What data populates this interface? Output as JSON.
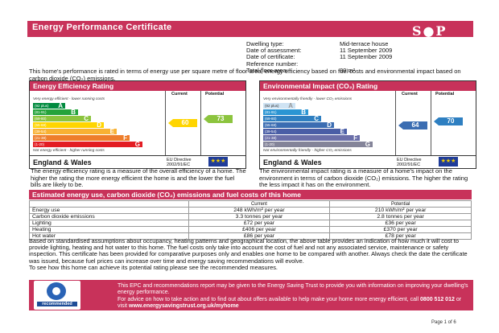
{
  "header": {
    "title": "Energy Performance Certificate",
    "logo_text": "S●P"
  },
  "details": [
    {
      "label": "Dwelling type:",
      "value": "Mid-terrace house"
    },
    {
      "label": "Date of assessment:",
      "value": "11 September 2009"
    },
    {
      "label": "Date of certificate:",
      "value": "11 September 2009"
    },
    {
      "label": "Reference number:",
      "value": ""
    },
    {
      "label": "Total floor area:",
      "value": "80 m²"
    }
  ],
  "intro": "This home's performance is rated in terms of energy use per square metre of floor area, energy efficiency based on fuel costs and environmental impact based on carbon dioxide (CO₂) emissions.",
  "colors": {
    "brand": "#c8325a",
    "band_A": "#008a3e",
    "band_B": "#25a33b",
    "band_C": "#8cc43e",
    "band_D": "#ffd500",
    "band_E": "#f8b133",
    "band_F": "#ee7d2b",
    "band_G": "#e31d23",
    "env_A": "#cfe3f3",
    "env_B": "#2b95d3",
    "env_C": "#2e7fc1",
    "env_D": "#3b6db2",
    "env_E": "#4a5ea6",
    "env_F": "#6b6fa9",
    "env_G": "#848499"
  },
  "efficiency": {
    "title": "Energy Efficiency Rating",
    "col_current": "Current",
    "col_potential": "Potential",
    "top_note": "Very energy efficient - lower running costs",
    "bottom_note": "Not energy efficient - higher running costs",
    "bands": [
      {
        "range": "(92 plus)",
        "letter": "A"
      },
      {
        "range": "(81-91)",
        "letter": "B"
      },
      {
        "range": "(69-80)",
        "letter": "C"
      },
      {
        "range": "(55-68)",
        "letter": "D"
      },
      {
        "range": "(39-54)",
        "letter": "E"
      },
      {
        "range": "(21-38)",
        "letter": "F"
      },
      {
        "range": "(1-20)",
        "letter": "G"
      }
    ],
    "current": "60",
    "potential": "73",
    "region": "England & Wales",
    "directive": "EU Directive 2002/91/EC",
    "caption": "The energy efficiency rating is a measure of the overall efficiency of a home. The higher the rating the more energy efficient the home is and the lower the fuel bills are likely to be."
  },
  "environmental": {
    "title": "Environmental Impact (CO₂) Rating",
    "col_current": "Current",
    "col_potential": "Potential",
    "top_note": "Very environmentally friendly - lower CO₂ emissions",
    "bottom_note": "Not environmentally friendly - higher CO₂ emissions",
    "bands": [
      {
        "range": "(92 plus)",
        "letter": "A"
      },
      {
        "range": "(81-91)",
        "letter": "B"
      },
      {
        "range": "(69-80)",
        "letter": "C"
      },
      {
        "range": "(55-68)",
        "letter": "D"
      },
      {
        "range": "(39-54)",
        "letter": "E"
      },
      {
        "range": "(21-38)",
        "letter": "F"
      },
      {
        "range": "(1-20)",
        "letter": "G"
      }
    ],
    "current": "64",
    "potential": "70",
    "region": "England & Wales",
    "directive": "EU Directive 2002/91/EC",
    "caption": "The environmental impact rating is a measure of a home's impact on the environment in terms of carbon dioxide (CO₂) emissions. The higher the rating the less impact it has on the environment."
  },
  "estimated": {
    "title": "Estimated energy use, carbon dioxide (CO₂) emissions and fuel costs of this home",
    "headers": [
      "",
      "Current",
      "Potential"
    ],
    "rows": [
      [
        "Energy use",
        "248 kWh/m² per year",
        "210 kWh/m² per year"
      ],
      [
        "Carbon dioxide emissions",
        "3.3 tonnes per year",
        "2.8 tonnes per year"
      ],
      [
        "Lighting",
        "£72 per year",
        "£36 per year"
      ],
      [
        "Heating",
        "£406 per year",
        "£370 per year"
      ],
      [
        "Hot water",
        "£86 per year",
        "£78 per year"
      ]
    ]
  },
  "assumptions": "Based on standardised assumptions about occupancy, heating patterns and geographical location, the above table provides an indication of how much it will cost to provide lighting, heating and hot water to this home. The fuel costs only take into account the cost of fuel and not any associated service, maintenance or safety inspection. This certificate has been provided for comparative purposes only and enables one home to be compared with another. Always check the date the certificate was issued, because fuel prices can increase over time and energy saving recommendations will evolve.",
  "see_how": "To see how this home can achieve its potential rating please see the recommended measures.",
  "footer": {
    "logo_label": "recommended",
    "line1": "This EPC and recommendations report may be given to the Energy Saving Trust to provide you with information on improving your dwelling's energy performance.",
    "line2": "For advice on how to take action and to find out about offers available to help make your home more energy efficient, call",
    "phone": "0800 512 012",
    "or": "or visit",
    "url": "www.energysavingstrust.org.uk/myhome"
  },
  "page_number": "Page 1 of 6"
}
